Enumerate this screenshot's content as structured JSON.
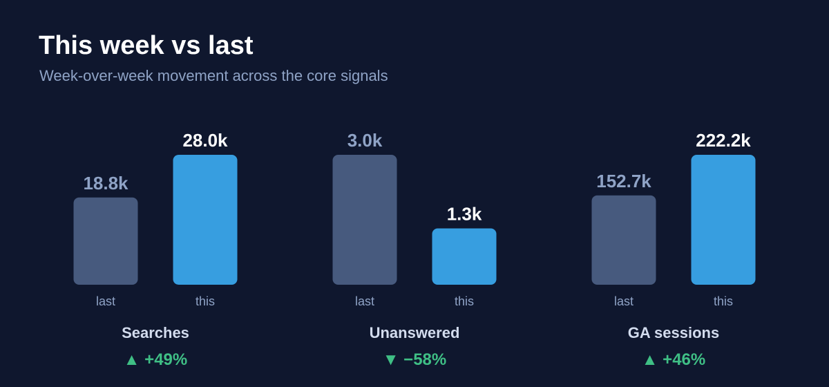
{
  "header": {
    "title": "This week vs last",
    "subtitle": "Week-over-week movement across the core signals"
  },
  "colors": {
    "background": "#0f172e",
    "last_bar": "#475a7e",
    "this_bar": "#379ee0",
    "last_label": "#8fa3c6",
    "this_label": "#ffffff",
    "tick_label": "#8fa3c6",
    "metric_name": "#d3dcee",
    "change_positive": "#3fbf85"
  },
  "chart_data": {
    "type": "bar",
    "title": "This week vs last",
    "subtitle": "Week-over-week movement across the core signals",
    "grid": false,
    "legend": "none",
    "categories": [
      "last",
      "this"
    ],
    "groups": [
      {
        "name": "Searches",
        "values": [
          18.8,
          28.0
        ],
        "value_labels": [
          "18.8k",
          "28.0k"
        ],
        "change_arrow": "▲",
        "change_label": "+49%"
      },
      {
        "name": "Unanswered",
        "values": [
          3.0,
          1.3
        ],
        "value_labels": [
          "3.0k",
          "1.3k"
        ],
        "change_arrow": "▼",
        "change_label": "−58%"
      },
      {
        "name": "GA sessions",
        "values": [
          152.7,
          222.2
        ],
        "value_labels": [
          "152.7k",
          "222.2k"
        ],
        "change_arrow": "▲",
        "change_label": "+46%"
      }
    ],
    "scale": "each group scaled to its own maximum"
  }
}
